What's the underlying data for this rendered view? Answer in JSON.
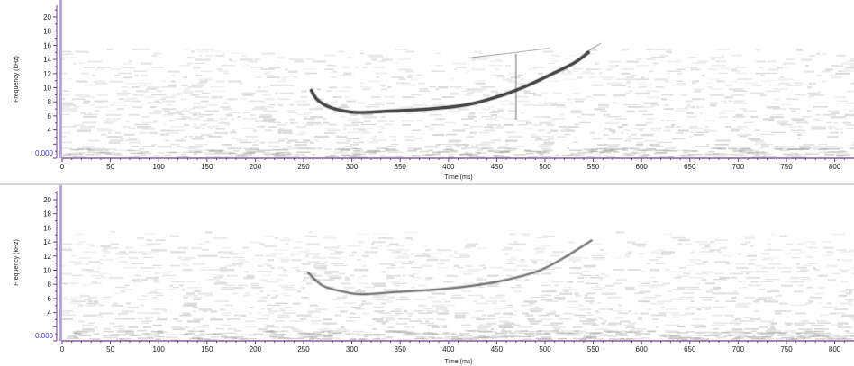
{
  "colors": {
    "axis": "#6a3f8a",
    "zero_label": "#3a3acc",
    "left_bar": "#b9a7d9",
    "noise": "#a9a9a9",
    "trace": "#303030"
  },
  "chart_data": [
    {
      "type": "heatmap",
      "kind": "spectrogram",
      "ylabel": "Frequency (kHz)",
      "xlabel": "Time (ms)",
      "xlim": [
        0,
        820
      ],
      "ylim": [
        0,
        22
      ],
      "x_ticks": [
        "0",
        "50",
        "100",
        "150",
        "200",
        "250",
        "300",
        "350",
        "400",
        "450",
        "500",
        "550",
        "600",
        "650",
        "700",
        "750",
        "800"
      ],
      "y_ticks": [
        "4",
        "6",
        "8",
        "10",
        "12",
        "14",
        "16",
        "18",
        "20"
      ],
      "zero_label": "0.000",
      "noise_ceiling_khz": 15.5,
      "trace": {
        "points": [
          [
            258,
            9.6
          ],
          [
            265,
            8.2
          ],
          [
            280,
            7.1
          ],
          [
            305,
            6.5
          ],
          [
            340,
            6.7
          ],
          [
            380,
            7.0
          ],
          [
            420,
            7.6
          ],
          [
            455,
            8.9
          ],
          [
            480,
            10.2
          ],
          [
            505,
            11.8
          ],
          [
            530,
            13.5
          ],
          [
            545,
            15.0
          ]
        ],
        "intensity": 0.85,
        "stroke": 3.2
      },
      "extra_marks": {
        "faint_line": [
          [
            425,
            14.3
          ],
          [
            470,
            15.0
          ],
          [
            505,
            15.6
          ]
        ],
        "vertical_transient_ms": 470,
        "top_tick": [
          [
            542,
            15.0
          ],
          [
            558,
            16.3
          ]
        ]
      }
    },
    {
      "type": "heatmap",
      "kind": "spectrogram",
      "ylabel": "Frequency (kHz)",
      "xlabel": "Time (ms)",
      "xlim": [
        0,
        820
      ],
      "ylim": [
        0,
        22
      ],
      "x_ticks": [
        "0",
        "50",
        "100",
        "150",
        "200",
        "250",
        "300",
        "350",
        "400",
        "450",
        "500",
        "550",
        "600",
        "650",
        "700",
        "750",
        "800"
      ],
      "y_ticks": [
        "4",
        "6",
        "8",
        "10",
        "12",
        "14",
        "16",
        "18",
        "20"
      ],
      "zero_label": "0.000",
      "noise_ceiling_khz": 15.5,
      "trace": {
        "points": [
          [
            255,
            9.6
          ],
          [
            270,
            7.8
          ],
          [
            290,
            7.0
          ],
          [
            310,
            6.6
          ],
          [
            345,
            6.9
          ],
          [
            390,
            7.3
          ],
          [
            430,
            7.9
          ],
          [
            465,
            8.8
          ],
          [
            495,
            10.0
          ],
          [
            520,
            11.8
          ],
          [
            548,
            14.2
          ]
        ],
        "intensity": 0.55,
        "stroke": 2.2
      },
      "extra_marks": {}
    }
  ]
}
